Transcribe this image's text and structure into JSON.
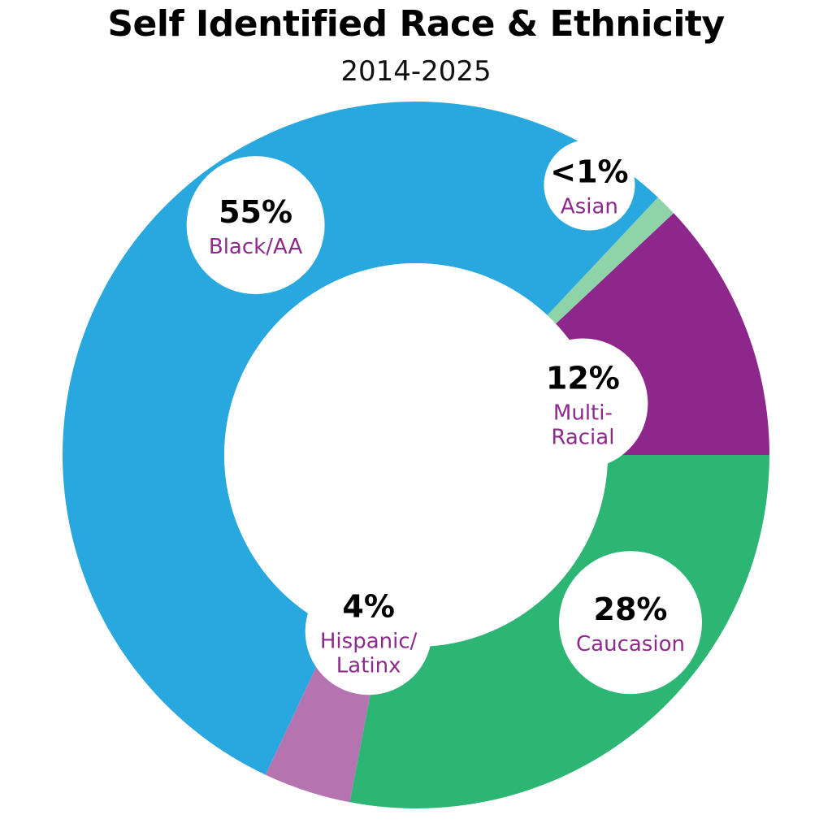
{
  "chart_data": {
    "type": "pie",
    "title": "Self Identified Race & Ethnicity",
    "subtitle": "2014-2025",
    "slices": [
      {
        "label": "Multi-Racial",
        "value": 12,
        "value_label": "12%",
        "label_lines": [
          "Multi-",
          "Racial"
        ],
        "color": "#8d278b"
      },
      {
        "label": "Asian",
        "value": 1,
        "value_label": "<1%",
        "label_lines": [
          "Asian"
        ],
        "color": "#8fd3a9"
      },
      {
        "label": "Black/AA",
        "value": 55,
        "value_label": "55%",
        "label_lines": [
          "Black/AA"
        ],
        "color": "#29a8e0"
      },
      {
        "label": "Hispanic/Latinx",
        "value": 4,
        "value_label": "4%",
        "label_lines": [
          "Hispanic/",
          "Latinx"
        ],
        "color": "#b574b0"
      },
      {
        "label": "Caucasion",
        "value": 28,
        "value_label": "28%",
        "label_lines": [
          "Caucasion"
        ],
        "color": "#2db673"
      }
    ]
  }
}
